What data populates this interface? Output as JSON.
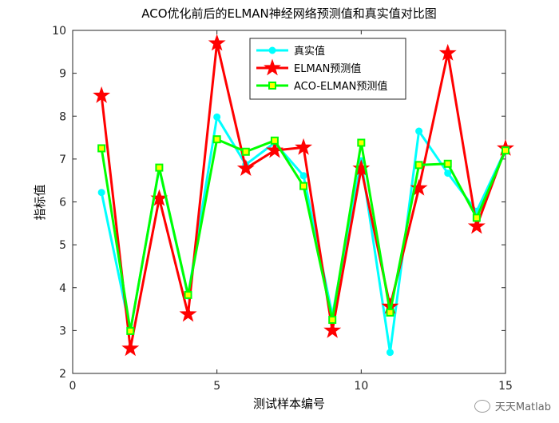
{
  "chart_data": {
    "type": "line",
    "title": "ACO优化前后的ELMAN神经网络预测值和真实值对比图",
    "xlabel": "测试样本编号",
    "ylabel": "指标值",
    "xlim": [
      0,
      15
    ],
    "ylim": [
      2,
      10
    ],
    "xticks": [
      "0",
      "5",
      "10",
      "15"
    ],
    "yticks": [
      "2",
      "3",
      "4",
      "5",
      "6",
      "7",
      "8",
      "9",
      "10"
    ],
    "x": [
      1,
      2,
      3,
      4,
      5,
      6,
      7,
      8,
      9,
      10,
      11,
      12,
      13,
      14,
      15
    ],
    "series": [
      {
        "name": "真实值",
        "color": "#00FFFF",
        "marker": "circle",
        "values": [
          6.22,
          2.99,
          6.78,
          3.81,
          7.98,
          6.87,
          7.38,
          6.61,
          3.36,
          6.96,
          2.49,
          7.65,
          6.67,
          5.78,
          7.22
        ]
      },
      {
        "name": "ELMAN预测值",
        "color": "#FF0000",
        "marker": "star",
        "values": [
          8.48,
          2.58,
          6.08,
          3.38,
          9.7,
          6.78,
          7.2,
          7.27,
          3.0,
          6.78,
          3.56,
          6.32,
          9.47,
          5.43,
          7.25
        ]
      },
      {
        "name": "ACO-ELMAN预测值",
        "color": "#00FF00",
        "marker": "square",
        "values": [
          7.25,
          2.99,
          6.8,
          3.83,
          7.46,
          7.17,
          7.43,
          6.37,
          3.25,
          7.38,
          3.42,
          6.86,
          6.89,
          5.63,
          7.2
        ]
      }
    ],
    "grid": false,
    "legend_position": "top-right"
  },
  "watermark": {
    "text": "天天Matlab"
  }
}
